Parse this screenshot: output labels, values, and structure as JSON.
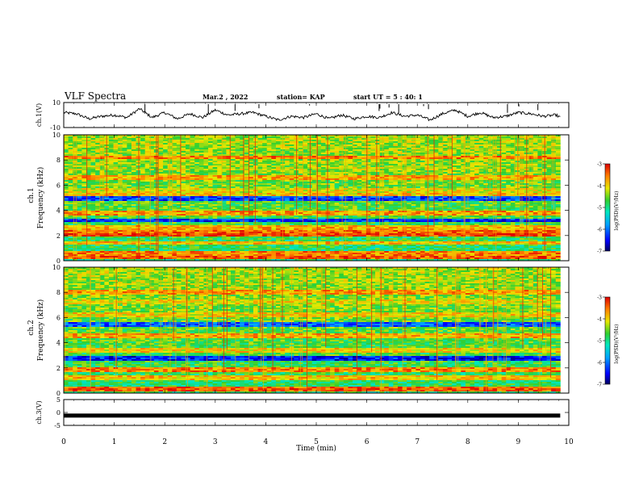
{
  "header": {
    "title": "VLF Spectra",
    "date": "Mar.2 , 2022",
    "station": "station= KAP",
    "start": "start UT = 5 : 40: 1"
  },
  "chart_data": [
    {
      "type": "line",
      "panel": "ch1-waveform",
      "ylabel": "ch.1(V)",
      "ylim": [
        -10,
        10
      ],
      "yticks": [
        "10",
        "-10"
      ],
      "xlim": [
        0,
        10
      ],
      "x": [
        0,
        0.25,
        0.5,
        0.75,
        1,
        1.25,
        1.5,
        1.75,
        2,
        2.25,
        2.5,
        2.75,
        3,
        3.25,
        3.5,
        3.75,
        4,
        4.25,
        4.5,
        4.75,
        5,
        5.25,
        5.5,
        5.75,
        6,
        6.25,
        6.5,
        6.75,
        7,
        7.25,
        7.5,
        7.75,
        8,
        8.25,
        8.5,
        8.75,
        9,
        9.25,
        9.5,
        9.75,
        9.83
      ],
      "y": [
        2,
        1,
        -3,
        -1,
        0,
        -2,
        5,
        -2,
        2,
        -3,
        1,
        -2,
        4,
        0,
        1,
        2,
        -1,
        -4,
        -1,
        -2,
        1,
        -3,
        0,
        -3,
        -1,
        -2,
        2,
        -1,
        0,
        -4,
        1,
        4,
        -1,
        2,
        -2,
        -1,
        2,
        1,
        -1,
        0,
        -2
      ]
    },
    {
      "type": "heatmap",
      "panel": "ch1-spectrogram",
      "title": "ch.1",
      "ylabel": "Frequency (kHz)",
      "ylim": [
        0,
        10
      ],
      "yticks": [
        "0",
        "2",
        "4",
        "6",
        "8",
        "10"
      ],
      "xlim": [
        0,
        10
      ],
      "colorbar": {
        "label": "log(PSD)(V²/Hz)",
        "range": [
          -7,
          -3
        ],
        "ticks": [
          "-3",
          "-4",
          "-5",
          "-6",
          "-7"
        ]
      },
      "bands": [
        {
          "f": 0.3,
          "level": -3.4
        },
        {
          "f": 0.6,
          "level": -3.6
        },
        {
          "f": 1.4,
          "level": -3.9
        },
        {
          "f": 2.1,
          "level": -3.3
        },
        {
          "f": 2.3,
          "level": -3.5
        },
        {
          "f": 2.6,
          "level": -3.8
        },
        {
          "f": 3.2,
          "level": -6.3
        },
        {
          "f": 3.8,
          "level": -3.7
        },
        {
          "f": 4.9,
          "level": -6.2
        },
        {
          "f": 5.3,
          "level": -3.9
        },
        {
          "f": 5.6,
          "level": -4.1
        },
        {
          "f": 6.6,
          "level": -3.8
        },
        {
          "f": 7.3,
          "level": -4.3
        },
        {
          "f": 8.2,
          "level": -3.6
        }
      ]
    },
    {
      "type": "heatmap",
      "panel": "ch2-spectrogram",
      "title": "ch.2",
      "ylabel": "Frequency (kHz)",
      "ylim": [
        0,
        10
      ],
      "yticks": [
        "0",
        "2",
        "4",
        "6",
        "8",
        "10"
      ],
      "xlim": [
        0,
        10
      ],
      "colorbar": {
        "label": "log(PSD)(V²/Hz)",
        "range": [
          -7,
          -3
        ],
        "ticks": [
          "-3",
          "-4",
          "-5",
          "-6",
          "-7"
        ]
      },
      "bands": [
        {
          "f": 0.3,
          "level": -3.4
        },
        {
          "f": 1.2,
          "level": -3.9
        },
        {
          "f": 1.9,
          "level": -3.6
        },
        {
          "f": 2.8,
          "level": -6.4
        },
        {
          "f": 3.4,
          "level": -4.0
        },
        {
          "f": 4.6,
          "level": -3.8
        },
        {
          "f": 5.4,
          "level": -6.1
        },
        {
          "f": 6.2,
          "level": -4.0
        },
        {
          "f": 7.2,
          "level": -4.1
        },
        {
          "f": 8.0,
          "level": -3.7
        }
      ]
    },
    {
      "type": "line",
      "panel": "ch3-waveform",
      "ylabel": "ch.3(V)",
      "ylim": [
        -5,
        5
      ],
      "yticks": [
        "5",
        "0",
        "-5"
      ],
      "xlim": [
        0,
        10
      ],
      "x": [
        0,
        9.83
      ],
      "y": [
        -1.2,
        -1.2
      ]
    }
  ],
  "xaxis": {
    "label": "Time (min)",
    "ticks": [
      "0",
      "1",
      "2",
      "3",
      "4",
      "5",
      "6",
      "7",
      "8",
      "9",
      "10"
    ]
  }
}
